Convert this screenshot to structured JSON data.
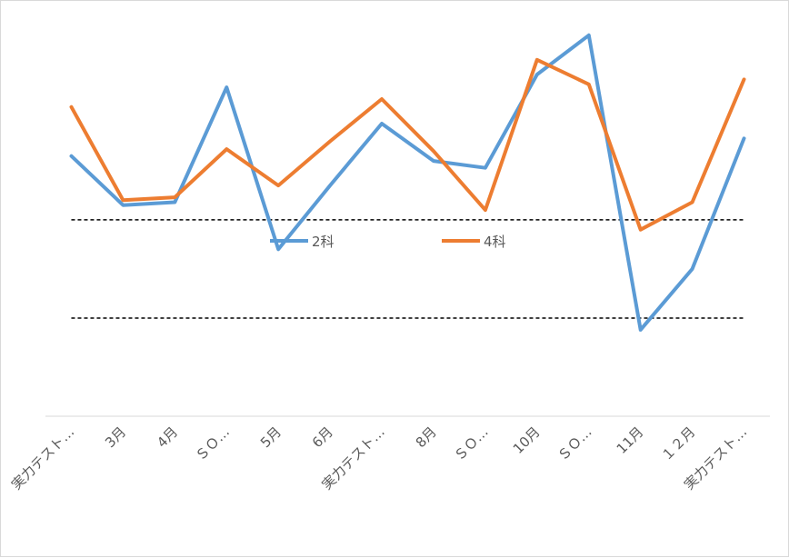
{
  "chart_data": {
    "type": "line",
    "title": "",
    "xlabel": "",
    "ylabel": "",
    "categories": [
      "実力テスト…",
      "3月",
      "4月",
      "ＳＯ…",
      "5月",
      "6月",
      "実力テスト…",
      "8月",
      "ＳＯ…",
      "10月",
      "ＳＯ…",
      "11月",
      "１２月",
      "実力テスト…"
    ],
    "series": [
      {
        "name": "2科",
        "color": "#5b9bd5",
        "values": [
          56.5,
          51.5,
          51.8,
          63.5,
          47.0,
          53.5,
          59.8,
          56.0,
          55.3,
          64.8,
          68.8,
          38.8,
          45.0,
          58.3
        ]
      },
      {
        "name": "4科",
        "color": "#ed7d31",
        "values": [
          61.5,
          52.0,
          52.3,
          57.2,
          53.5,
          58.0,
          62.3,
          57.0,
          51.0,
          66.3,
          63.8,
          49.0,
          51.8,
          64.3
        ]
      }
    ],
    "reference_lines": [
      50,
      40
    ],
    "ylim": [
      30,
      72.3
    ],
    "legend": "center",
    "grid": false
  }
}
